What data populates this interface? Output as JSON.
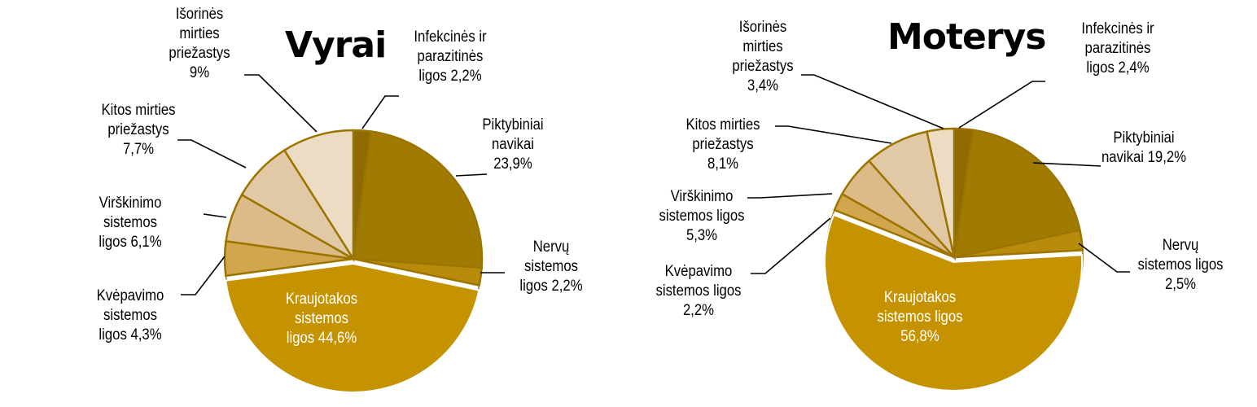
{
  "chart_data": [
    {
      "type": "pie",
      "title": "Vyrai",
      "start_angle": "12 o'clock, clockwise",
      "categories": [
        "Infekcinės ir parazitinės ligos",
        "Piktybiniai navikai",
        "Nervų sistemos ligos",
        "Kraujotakos sistemos ligos",
        "Kvėpavimo sistemos ligos",
        "Virškinimo sistemos ligos",
        "Kitos mirties priežastys",
        "Išorinės mirties priežastys"
      ],
      "values": [
        2.2,
        23.9,
        2.2,
        44.6,
        4.3,
        6.1,
        7.7,
        9.0
      ],
      "unit": "%",
      "colors": [
        "#8F6A00",
        "#A17A00",
        "#B88B0A",
        "#C59300",
        "#D2A64C",
        "#DDBB88",
        "#E2C9A5",
        "#EBDCC3"
      ],
      "labels": [
        "Infekcinės ir\nparazitinės\nligos 2,2%",
        "Piktybiniai\nnavikai\n23,9%",
        "Nervų\nsistemos\nligos  2,2%",
        "Kraujotakos\nsistemos\nligos 44,6%",
        "Kvėpavimo\nsistemos\nligos 4,3%",
        "Virškinimo\nsistemos\nligos  6,1%",
        "Kitos mirties\npriežastys\n7,7%",
        "Išorinės\nmirties\npriežastys\n9%"
      ]
    },
    {
      "type": "pie",
      "title": "Moterys",
      "start_angle": "12 o'clock, clockwise",
      "categories": [
        "Infekcinės ir parazitinės ligos",
        "Piktybiniai navikai",
        "Nervų sistemos ligos",
        "Kraujotakos sistemos ligos",
        "Kvėpavimo sistemos ligos",
        "Virškinimo sistemos ligos",
        "Kitos mirties priežastys",
        "Išorinės mirties priežastys"
      ],
      "values": [
        2.4,
        19.2,
        2.5,
        56.8,
        2.2,
        5.3,
        8.1,
        3.4
      ],
      "unit": "%",
      "colors": [
        "#8F6A00",
        "#A17A00",
        "#B88B0A",
        "#C59300",
        "#D2A64C",
        "#DDBB88",
        "#E2C9A5",
        "#EBDCC3"
      ],
      "labels": [
        "Infekcinės ir\nparazitinės\nligos 2,4%",
        "Piktybiniai\nnavikai 19,2%",
        "Nervų\nsistemos ligos\n2,5%",
        "Kraujotakos\nsistemos ligos\n56,8%",
        "Kvėpavimo\nsistemos ligos\n2,2%",
        "Virškinimo\nsistemos ligos\n5,3%",
        "Kitos mirties\npriežastys\n8,1%",
        "Išorinės\nmirties\npriežastys\n3,4%"
      ]
    }
  ],
  "charts": {
    "men": {
      "title": "Vyrai",
      "labels": {
        "infekcines": "Infekcinės ir\nparazitinės\nligos 2,2%",
        "piktybiniai": "Piktybiniai\nnavikai\n23,9%",
        "nervu": "Nervų\nsistemos\nligos  2,2%",
        "kraujotakos": "Kraujotakos\nsistemos\nligos 44,6%",
        "kvepavimo": "Kvėpavimo\nsistemos\nligos 4,3%",
        "virskinimo": "Virškinimo\nsistemos\nligos  6,1%",
        "kitos": "Kitos mirties\npriežastys\n7,7%",
        "isorines": "Išorinės\nmirties\npriežastys\n9%"
      }
    },
    "women": {
      "title": "Moterys",
      "labels": {
        "infekcines": "Infekcinės ir\nparazitinės\nligos 2,4%",
        "piktybiniai": "Piktybiniai\nnavikai 19,2%",
        "nervu": "Nervų\nsistemos ligos\n2,5%",
        "kraujotakos": "Kraujotakos\nsistemos ligos\n56,8%",
        "kvepavimo": "Kvėpavimo\nsistemos ligos\n2,2%",
        "virskinimo": "Virškinimo\nsistemos ligos\n5,3%",
        "kitos": "Kitos mirties\npriežastys\n8,1%",
        "isorines": "Išorinės\nmirties\npriežastys\n3,4%"
      }
    }
  }
}
